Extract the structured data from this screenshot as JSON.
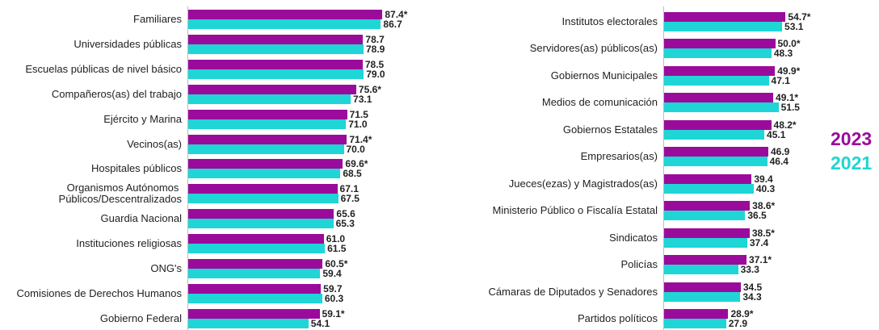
{
  "chart_data": [
    {
      "type": "bar",
      "orientation": "horizontal",
      "categories": [
        "Familiares",
        "Universidades públicas",
        "Escuelas públicas de nivel básico",
        "Compañeros(as) del trabajo",
        "Ejército y Marina",
        "Vecinos(as)",
        "Hospitales públicos",
        "Organismos Autónomos \nPúblicos/Descentralizados",
        "Guardia Nacional",
        "Instituciones religiosas",
        "ONG's",
        "Comisiones de Derechos Humanos",
        "Gobierno Federal"
      ],
      "series": [
        {
          "name": "2023",
          "color": "#9b0b9b",
          "values": [
            87.4,
            78.7,
            78.5,
            75.6,
            71.5,
            71.4,
            69.6,
            67.1,
            65.6,
            61.0,
            60.5,
            59.7,
            59.1
          ],
          "value_labels": [
            "87.4*",
            "78.7",
            "78.5",
            "75.6*",
            "71.5",
            "71.4*",
            "69.6*",
            "67.1",
            "65.6",
            "61.0",
            "60.5*",
            "59.7",
            "59.1*"
          ]
        },
        {
          "name": "2021",
          "color": "#1fd5d5",
          "values": [
            86.7,
            78.9,
            79.0,
            73.1,
            71.0,
            70.0,
            68.5,
            67.5,
            65.3,
            61.5,
            59.4,
            60.3,
            54.1
          ],
          "value_labels": [
            "86.7",
            "78.9",
            "79.0",
            "73.1",
            "71.0",
            "70.0",
            "68.5",
            "67.5",
            "65.3",
            "61.5",
            "59.4",
            "60.3",
            "54.1"
          ]
        }
      ]
    },
    {
      "type": "bar",
      "orientation": "horizontal",
      "categories": [
        "Institutos electorales",
        "Servidores(as) públicos(as)",
        "Gobiernos Municipales",
        "Medios de comunicación",
        "Gobiernos Estatales",
        "Empresarios(as)",
        "Jueces(ezas) y Magistrados(as)",
        "Ministerio Público o Fiscalía Estatal",
        "Sindicatos",
        "Policías",
        "Cámaras de Diputados y Senadores",
        "Partidos políticos"
      ],
      "series": [
        {
          "name": "2023",
          "color": "#9b0b9b",
          "values": [
            54.7,
            50.0,
            49.9,
            49.1,
            48.2,
            46.9,
            39.4,
            38.6,
            38.5,
            37.1,
            34.5,
            28.9
          ],
          "value_labels": [
            "54.7*",
            "50.0*",
            "49.9*",
            "49.1*",
            "48.2*",
            "46.9",
            "39.4",
            "38.6*",
            "38.5*",
            "37.1*",
            "34.5",
            "28.9*"
          ]
        },
        {
          "name": "2021",
          "color": "#1fd5d5",
          "values": [
            53.1,
            48.3,
            47.1,
            51.5,
            45.1,
            46.4,
            40.3,
            36.5,
            37.4,
            33.3,
            34.3,
            27.9
          ],
          "value_labels": [
            "53.1",
            "48.3",
            "47.1",
            "51.5",
            "45.1",
            "46.4",
            "40.3",
            "36.5",
            "37.4",
            "33.3",
            "34.3",
            "27.9"
          ]
        }
      ]
    }
  ]
}
